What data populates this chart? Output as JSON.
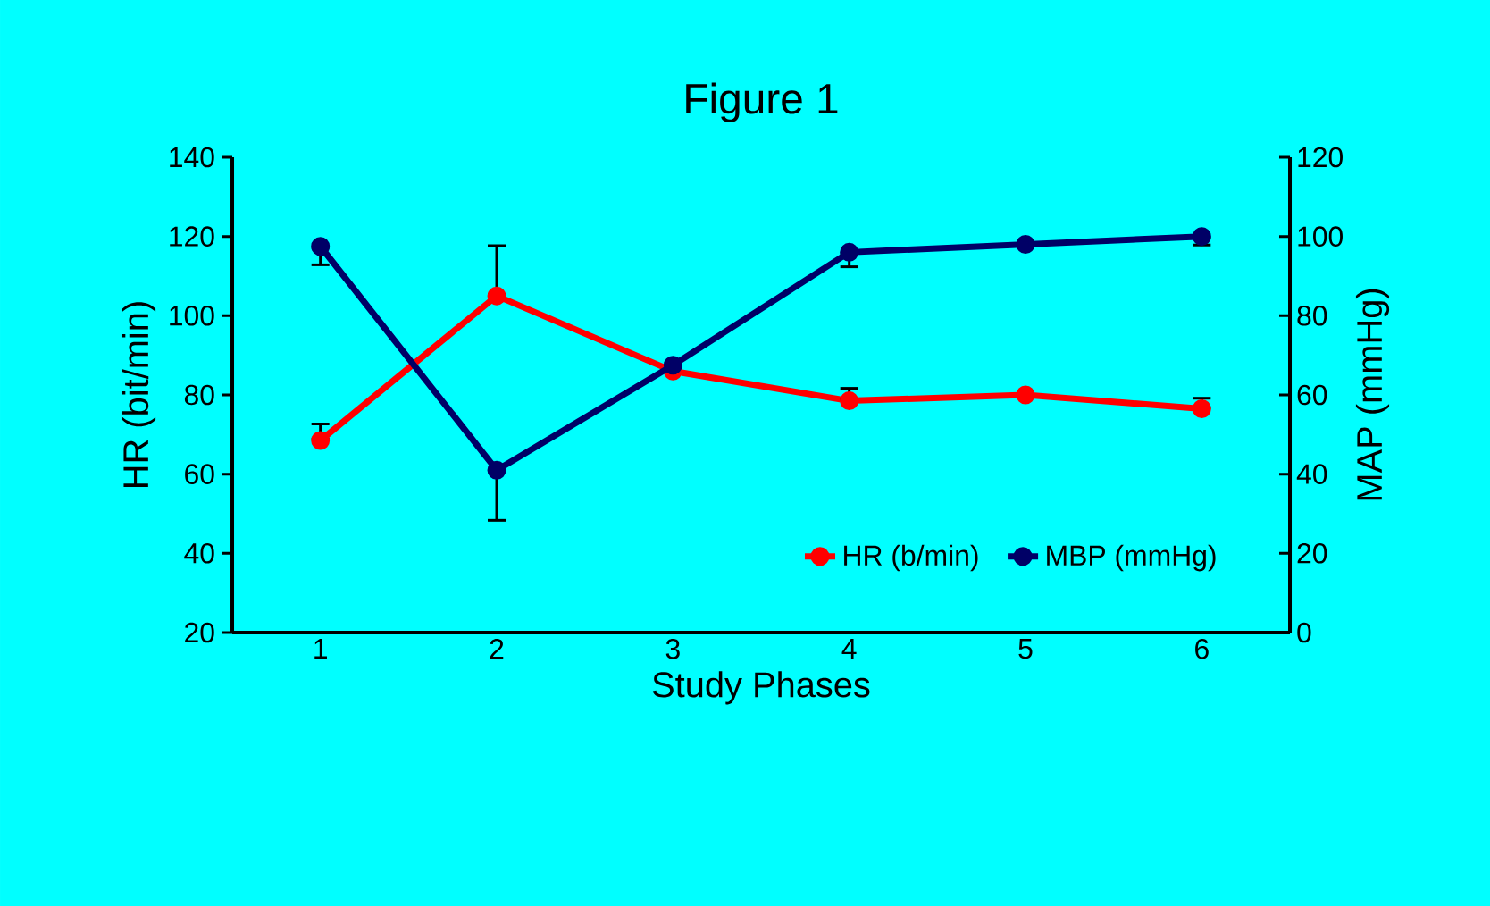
{
  "chart_data": {
    "type": "line",
    "title": "Figure 1",
    "xlabel": "Study  Phases",
    "ylabel": "HR (bit/min)",
    "y2label": "MAP (mmHg)",
    "categories": [
      "1",
      "2",
      "3",
      "4",
      "5",
      "6"
    ],
    "series": [
      {
        "name": "HR (b/min)",
        "color": "#ff0000",
        "values": [
          68.5,
          105,
          86,
          78.5,
          80,
          76.5
        ],
        "errors": [
          [
            68.5,
            73
          ],
          [
            105,
            118
          ],
          null,
          [
            78.5,
            82
          ],
          null,
          [
            76.5,
            79.5
          ]
        ]
      },
      {
        "name": "MBP (mmHg)",
        "color": "#000066",
        "axis": "y2",
        "values": [
          97.5,
          41,
          67.5,
          96,
          98,
          100
        ],
        "errors": [
          [
            92.5,
            97.5
          ],
          [
            28,
            41
          ],
          null,
          [
            92,
            96
          ],
          null,
          [
            97.5,
            100
          ]
        ]
      }
    ],
    "ylim": [
      20,
      140
    ],
    "yticks": [
      20,
      40,
      60,
      80,
      100,
      120,
      140
    ],
    "y2lim": [
      0,
      120
    ],
    "y2ticks": [
      0,
      20,
      40,
      60,
      80,
      100,
      120
    ],
    "legend": "bottom right",
    "marker": "circle",
    "line_style": "solid"
  }
}
